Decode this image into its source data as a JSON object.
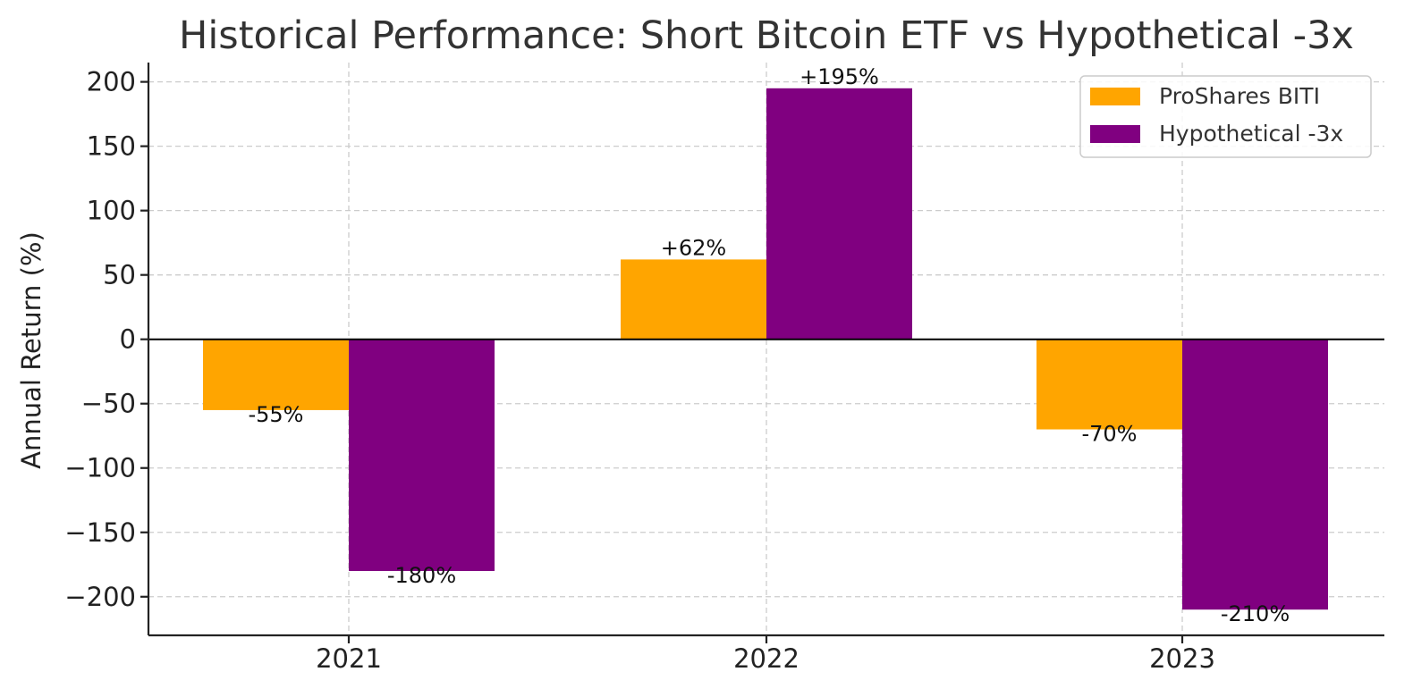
{
  "chart_data": {
    "type": "bar",
    "title": "Historical Performance: Short Bitcoin ETF vs Hypothetical -3x",
    "xlabel": "",
    "ylabel": "Annual Return (%)",
    "categories": [
      "2021",
      "2022",
      "2023"
    ],
    "ylim": [
      -230,
      215
    ],
    "yticks": [
      200,
      150,
      100,
      50,
      0,
      -50,
      -100,
      -150,
      -200
    ],
    "ytick_labels": [
      "200",
      "150",
      "100",
      "50",
      "0",
      "−50",
      "−100",
      "−150",
      "−200"
    ],
    "grid": true,
    "legend_position": "top-right",
    "series": [
      {
        "name": "ProShares BITI",
        "color": "#FFA500",
        "values": [
          -55,
          62,
          -70
        ],
        "labels": [
          "-55%",
          "+62%",
          "-70%"
        ]
      },
      {
        "name": "Hypothetical -3x",
        "color": "#800080",
        "values": [
          -180,
          195,
          -210
        ],
        "labels": [
          "-180%",
          "+195%",
          "-210%"
        ]
      }
    ]
  }
}
